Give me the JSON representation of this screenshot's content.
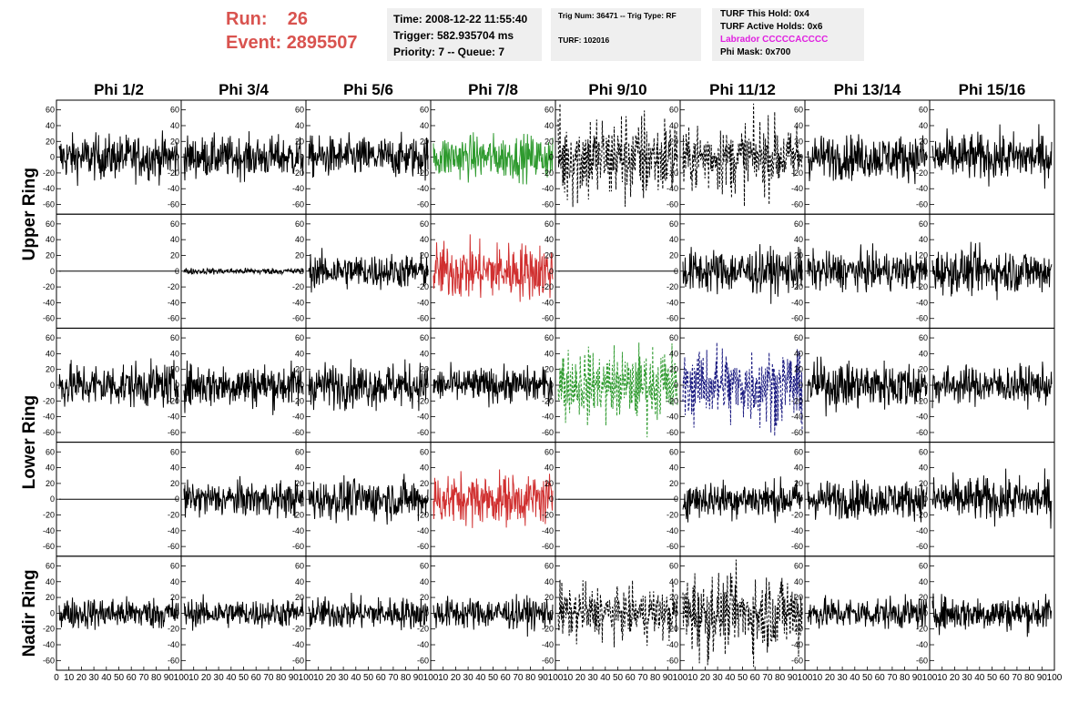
{
  "run_label": "Run:",
  "run_value": "26",
  "event_label": "Event:",
  "event_value": "2895507",
  "time_info": {
    "time": "Time: 2008-12-22 11:55:40",
    "trigger": "Trigger: 582.935704 ms",
    "priority": "Priority: 7 -- Queue: 7"
  },
  "trig_info": {
    "line1": "Trig Num: 36471 -- Trig Type: RF",
    "line2": "TURF: 102016"
  },
  "turf_info": {
    "this_hold": "TURF This Hold: 0x4",
    "active_holds": "TURF Active Holds: 0x6",
    "labrador": "Labrador CCCCCACCCC",
    "phi_mask": "Phi Mask: 0x700"
  },
  "colors": {
    "accent_red": "#d9534f",
    "labrador_magenta": "#e020e0",
    "trace_black": "#000000",
    "trace_green": "#2e9a2e",
    "trace_red": "#d03030",
    "trace_navy": "#1a1a80"
  },
  "chart_data": {
    "type": "line",
    "phi_headers": [
      "Phi 1/2",
      "Phi 3/4",
      "Phi 5/6",
      "Phi 7/8",
      "Phi 9/10",
      "Phi 11/12",
      "Phi 13/14",
      "Phi 15/16"
    ],
    "ring_labels": [
      "Upper Ring",
      "Lower Ring",
      "Nadir Ring"
    ],
    "ring_spans": [
      [
        0,
        1
      ],
      [
        2,
        3
      ],
      [
        4,
        4
      ]
    ],
    "xlim": [
      0,
      100
    ],
    "ylim": [
      -70,
      70
    ],
    "y_ticks": [
      60,
      40,
      20,
      0,
      -20,
      -40,
      -60
    ],
    "x_tick_labels": [
      "0",
      "10",
      "20",
      "30",
      "40",
      "50",
      "60",
      "70",
      "80",
      "90",
      "100"
    ],
    "panels": [
      [
        {
          "style": "solid",
          "color": "#000000",
          "amp": 14
        },
        {
          "style": "solid",
          "color": "#000000",
          "amp": 13
        },
        {
          "style": "solid",
          "color": "#000000",
          "amp": 13
        },
        {
          "style": "solid",
          "color": "#2e9a2e",
          "amp": 14
        },
        {
          "style": "dashed",
          "color": "#000000",
          "amp": 20
        },
        {
          "style": "dashed",
          "color": "#000000",
          "amp": 15
        },
        {
          "style": "solid",
          "color": "#000000",
          "amp": 14
        },
        {
          "style": "solid",
          "color": "#000000",
          "amp": 15
        }
      ],
      [
        {
          "style": "flat",
          "color": "#000000",
          "amp": 0
        },
        {
          "style": "solid",
          "color": "#000000",
          "amp": 2
        },
        {
          "style": "solid",
          "color": "#000000",
          "amp": 11
        },
        {
          "style": "solid",
          "color": "#d03030",
          "amp": 18
        },
        {
          "style": "flat",
          "color": "#000000",
          "amp": 0
        },
        {
          "style": "solid",
          "color": "#000000",
          "amp": 14
        },
        {
          "style": "solid",
          "color": "#000000",
          "amp": 12
        },
        {
          "style": "solid",
          "color": "#000000",
          "amp": 14
        }
      ],
      [
        {
          "style": "solid",
          "color": "#000000",
          "amp": 14
        },
        {
          "style": "solid",
          "color": "#000000",
          "amp": 14
        },
        {
          "style": "solid",
          "color": "#000000",
          "amp": 14
        },
        {
          "style": "solid",
          "color": "#000000",
          "amp": 11
        },
        {
          "style": "dashed",
          "color": "#2e9a2e",
          "amp": 16
        },
        {
          "style": "dashed",
          "color": "#1a1a80",
          "amp": 17
        },
        {
          "style": "solid",
          "color": "#000000",
          "amp": 15
        },
        {
          "style": "solid",
          "color": "#000000",
          "amp": 12
        }
      ],
      [
        {
          "style": "flat",
          "color": "#000000",
          "amp": 0
        },
        {
          "style": "solid",
          "color": "#000000",
          "amp": 11
        },
        {
          "style": "solid",
          "color": "#000000",
          "amp": 13
        },
        {
          "style": "solid",
          "color": "#d03030",
          "amp": 16
        },
        {
          "style": "flat",
          "color": "#000000",
          "amp": 0
        },
        {
          "style": "solid",
          "color": "#000000",
          "amp": 12
        },
        {
          "style": "solid",
          "color": "#000000",
          "amp": 12
        },
        {
          "style": "solid",
          "color": "#000000",
          "amp": 14
        }
      ],
      [
        {
          "style": "solid",
          "color": "#000000",
          "amp": 10
        },
        {
          "style": "solid",
          "color": "#000000",
          "amp": 9
        },
        {
          "style": "solid",
          "color": "#000000",
          "amp": 10
        },
        {
          "style": "solid",
          "color": "#000000",
          "amp": 10
        },
        {
          "style": "dashed",
          "color": "#000000",
          "amp": 12
        },
        {
          "style": "dashed",
          "color": "#000000",
          "amp": 18
        },
        {
          "style": "solid",
          "color": "#000000",
          "amp": 10
        },
        {
          "style": "solid",
          "color": "#000000",
          "amp": 11
        }
      ]
    ]
  }
}
